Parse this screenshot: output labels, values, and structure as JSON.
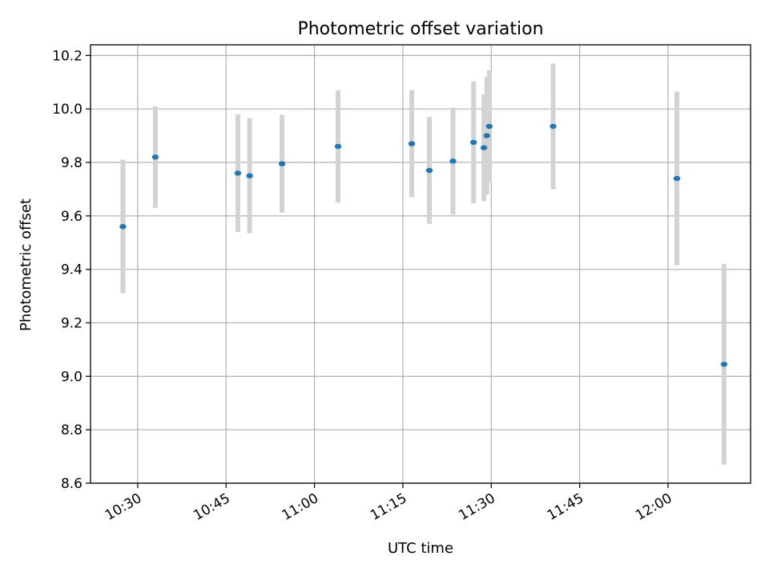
{
  "chart_data": {
    "type": "scatter",
    "title": "Photometric offset variation",
    "xlabel": "UTC time",
    "ylabel": "Photometric offset",
    "x_ticks": [
      "10:30",
      "10:45",
      "11:00",
      "11:15",
      "11:30",
      "11:45",
      "12:00"
    ],
    "y_ticks": [
      "8.6",
      "8.8",
      "9.0",
      "9.2",
      "9.4",
      "9.6",
      "9.8",
      "10.0",
      "10.2"
    ],
    "xlim": [
      "10:22",
      "12:14"
    ],
    "ylim": [
      8.6,
      10.24
    ],
    "grid": true,
    "errorbar_color": "#d3d3d3",
    "marker_color": "#1f77b4",
    "points": [
      {
        "x": "10:27:30",
        "y": 9.56,
        "yerr": 0.25
      },
      {
        "x": "10:33:00",
        "y": 9.82,
        "yerr": 0.19
      },
      {
        "x": "10:47:00",
        "y": 9.76,
        "yerr": 0.22
      },
      {
        "x": "10:49:00",
        "y": 9.75,
        "yerr": 0.215
      },
      {
        "x": "10:54:30",
        "y": 9.795,
        "yerr": 0.183
      },
      {
        "x": "11:04:00",
        "y": 9.86,
        "yerr": 0.21
      },
      {
        "x": "11:16:30",
        "y": 9.87,
        "yerr": 0.2
      },
      {
        "x": "11:19:30",
        "y": 9.77,
        "yerr": 0.2
      },
      {
        "x": "11:23:30",
        "y": 9.805,
        "yerr": 0.2
      },
      {
        "x": "11:27:00",
        "y": 9.875,
        "yerr": 0.228
      },
      {
        "x": "11:28:45",
        "y": 9.855,
        "yerr": 0.2
      },
      {
        "x": "11:29:15",
        "y": 9.9,
        "yerr": 0.22
      },
      {
        "x": "11:29:40",
        "y": 9.935,
        "yerr": 0.21
      },
      {
        "x": "11:40:30",
        "y": 9.935,
        "yerr": 0.235
      },
      {
        "x": "12:01:30",
        "y": 9.74,
        "yerr": 0.325
      },
      {
        "x": "12:09:30",
        "y": 9.045,
        "yerr": 0.375
      }
    ]
  }
}
